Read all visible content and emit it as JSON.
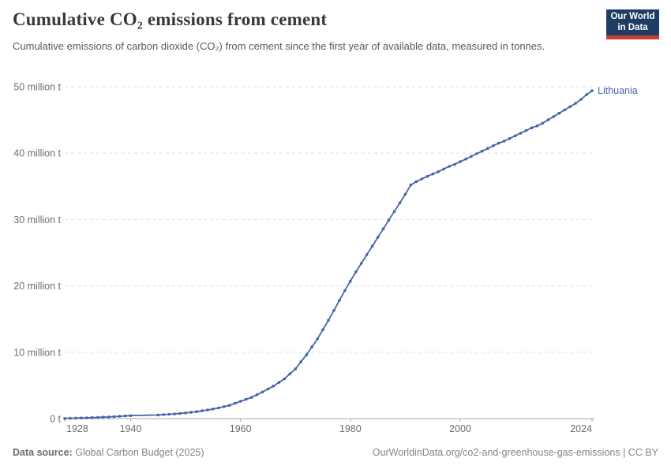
{
  "header": {
    "title": "Cumulative CO₂ emissions from cement",
    "subtitle": "Cumulative emissions of carbon dioxide (CO₂) from cement since the first year of available data, measured in tonnes.",
    "logo": {
      "line1": "Our World",
      "line2": "in Data",
      "bg_color": "#1d3d63",
      "bar_color": "#cc3b31"
    }
  },
  "chart_data": {
    "type": "line",
    "title": "Cumulative CO₂ emissions from cement",
    "entity_label": "Lithuania",
    "line_color": "#4465a8",
    "unit": "million tonnes",
    "years_range": [
      1928,
      2024
    ],
    "values": [
      0.02,
      0.05,
      0.07,
      0.1,
      0.12,
      0.15,
      0.18,
      0.22,
      0.25,
      0.3,
      0.35,
      0.4,
      0.45,
      0.47,
      0.49,
      0.51,
      0.53,
      0.55,
      0.6,
      0.65,
      0.7,
      0.78,
      0.85,
      0.95,
      1.05,
      1.18,
      1.3,
      1.45,
      1.6,
      1.8,
      2.0,
      2.3,
      2.6,
      2.9,
      3.2,
      3.6,
      4.0,
      4.45,
      4.9,
      5.45,
      6.0,
      6.75,
      7.5,
      8.55,
      9.6,
      10.8,
      12.0,
      13.4,
      14.8,
      16.3,
      17.8,
      19.3,
      20.7,
      22.1,
      23.4,
      24.7,
      26.0,
      27.3,
      28.6,
      29.9,
      31.2,
      32.5,
      33.8,
      35.2,
      35.7,
      36.1,
      36.5,
      36.85,
      37.2,
      37.6,
      38.0,
      38.3,
      38.7,
      39.1,
      39.5,
      39.9,
      40.3,
      40.7,
      41.1,
      41.5,
      41.8,
      42.2,
      42.6,
      43.0,
      43.4,
      43.8,
      44.1,
      44.5,
      45.0,
      45.5,
      46.0,
      46.5,
      47.0,
      47.5,
      48.1,
      48.8,
      49.4
    ],
    "marker_gap_years": [
      1941,
      1942,
      1943,
      1944
    ],
    "x_ticks": [
      1928,
      1940,
      1960,
      1980,
      2000,
      2024
    ],
    "y_ticks": [
      0,
      10,
      20,
      30,
      40,
      50
    ],
    "y_tick_labels": [
      "0 t",
      "10 million t",
      "20 million t",
      "30 million t",
      "40 million t",
      "50 million t"
    ],
    "ylim": [
      0,
      50
    ],
    "grid": "dashed horizontal gridlines",
    "legend_position": "end-of-line label"
  },
  "footer": {
    "source_label": "Data source:",
    "source_value": "Global Carbon Budget (2025)",
    "link_text": "OurWorldinData.org/co2-and-greenhouse-gas-emissions | CC BY"
  }
}
